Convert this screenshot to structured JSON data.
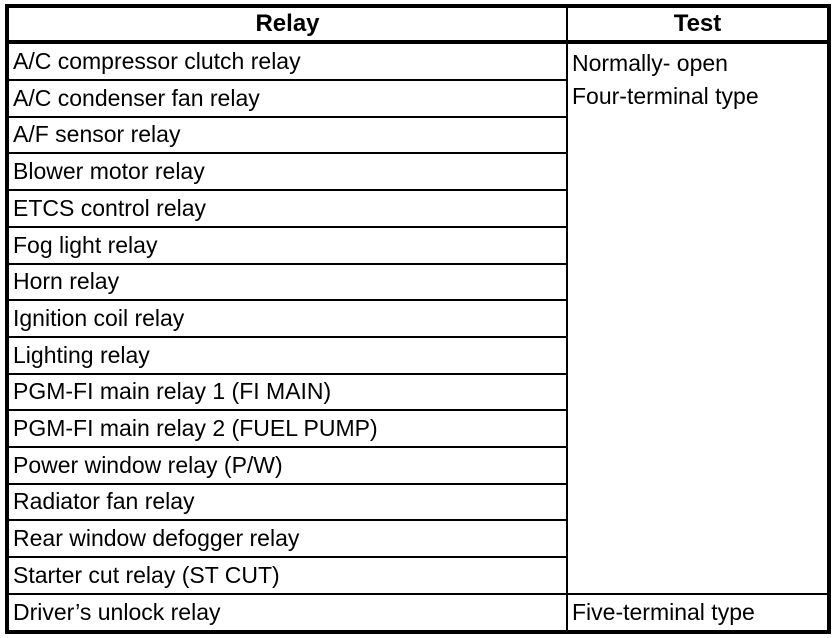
{
  "table": {
    "headers": {
      "relay": "Relay",
      "test": "Test"
    },
    "rows": [
      "A/C compressor clutch relay",
      "A/C condenser fan relay",
      "A/F sensor relay",
      "Blower motor relay",
      "ETCS control relay",
      "Fog light relay",
      "Horn relay",
      "Ignition coil relay",
      "Lighting relay",
      "PGM-FI main relay 1 (FI MAIN)",
      "PGM-FI main relay 2 (FUEL PUMP)",
      "Power window relay (P/W)",
      "Radiator fan relay",
      "Rear window defogger relay",
      "Starter cut relay (ST CUT)",
      "Driver’s unlock relay"
    ],
    "test_cells": {
      "four_terminal": "Normally- open\nFour-terminal type",
      "five_terminal": "Five-terminal type"
    },
    "colors": {
      "border": "#000000",
      "text": "#000000",
      "background": "#ffffff"
    }
  }
}
